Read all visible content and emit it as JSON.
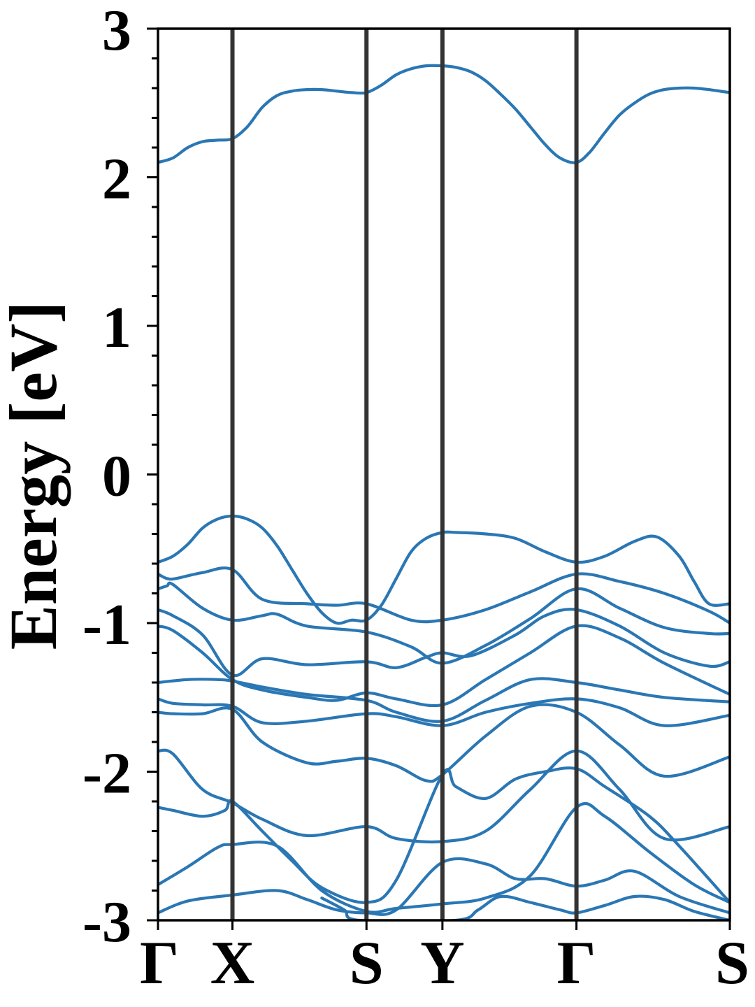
{
  "chart_data": {
    "type": "line",
    "title": "",
    "xlabel": "",
    "ylabel": "Energy [eV]",
    "ylim": [
      -3,
      3
    ],
    "yticks": [
      "-3",
      "-2",
      "-1",
      "0",
      "1",
      "2",
      "3"
    ],
    "y_minor_tick_step": 0.2,
    "xlim": [
      0,
      3.84
    ],
    "kpoints": [
      {
        "label": "Γ",
        "x": 0
      },
      {
        "label": "X",
        "x": 0.5
      },
      {
        "label": "S",
        "x": 1.4
      },
      {
        "label": "Y",
        "x": 1.91
      },
      {
        "label": "Γ",
        "x": 2.81
      },
      {
        "label": "S",
        "x": 3.84
      }
    ],
    "grid": false,
    "legend": "none",
    "line_color": "#2a77b4",
    "kline_color": "#333333",
    "series": [
      {
        "x": [
          0,
          0.1,
          0.2,
          0.3,
          0.4,
          0.5,
          0.6,
          0.7,
          0.8,
          0.9,
          1.0,
          1.1,
          1.2,
          1.3,
          1.4,
          1.5,
          1.6,
          1.7,
          1.8,
          1.91,
          2.0,
          2.1,
          2.2,
          2.3,
          2.4,
          2.5,
          2.6,
          2.7,
          2.81,
          2.9,
          3.0,
          3.1,
          3.2,
          3.3,
          3.4,
          3.5,
          3.6,
          3.7,
          3.84
        ],
        "values": [
          2.1,
          2.13,
          2.2,
          2.24,
          2.25,
          2.26,
          2.34,
          2.47,
          2.55,
          2.58,
          2.59,
          2.59,
          2.58,
          2.57,
          2.57,
          2.62,
          2.69,
          2.73,
          2.75,
          2.75,
          2.74,
          2.71,
          2.65,
          2.56,
          2.46,
          2.34,
          2.22,
          2.13,
          2.1,
          2.17,
          2.3,
          2.42,
          2.5,
          2.56,
          2.59,
          2.6,
          2.6,
          2.59,
          2.57
        ]
      },
      {
        "x": [
          0,
          0.1,
          0.2,
          0.3,
          0.4,
          0.5,
          0.6,
          0.7,
          0.8,
          0.9,
          1.0,
          1.1,
          1.2,
          1.3,
          1.4,
          1.5,
          1.6,
          1.7,
          1.8,
          1.91,
          2.0,
          2.2,
          2.4,
          2.6,
          2.81,
          3.0,
          3.2,
          3.35,
          3.5,
          3.6,
          3.7,
          3.84
        ],
        "values": [
          -0.59,
          -0.55,
          -0.47,
          -0.36,
          -0.3,
          -0.28,
          -0.3,
          -0.36,
          -0.48,
          -0.64,
          -0.8,
          -0.93,
          -1.0,
          -0.98,
          -0.98,
          -0.88,
          -0.7,
          -0.52,
          -0.43,
          -0.39,
          -0.39,
          -0.4,
          -0.43,
          -0.52,
          -0.59,
          -0.55,
          -0.45,
          -0.42,
          -0.55,
          -0.72,
          -0.87,
          -0.87
        ]
      },
      {
        "x": [
          0,
          0.06,
          0.12,
          0.3,
          0.5,
          0.7,
          1.0,
          1.2,
          1.4,
          1.7,
          1.91,
          2.2,
          2.5,
          2.81,
          3.1,
          3.4,
          3.7,
          3.84
        ],
        "values": [
          -0.67,
          -0.7,
          -0.7,
          -0.66,
          -0.64,
          -0.84,
          -0.87,
          -0.88,
          -0.87,
          -0.98,
          -0.98,
          -0.91,
          -0.79,
          -0.67,
          -0.72,
          -0.8,
          -0.92,
          -1.0
        ]
      },
      {
        "x": [
          0,
          0.06,
          0.1,
          0.3,
          0.5,
          0.7,
          0.8,
          1.0,
          1.4,
          1.7,
          1.91,
          2.2,
          2.5,
          2.81,
          3.1,
          3.4,
          3.7,
          3.84
        ],
        "values": [
          -0.77,
          -0.75,
          -0.74,
          -0.9,
          -0.98,
          -0.95,
          -0.94,
          -1.02,
          -1.06,
          -1.16,
          -1.27,
          -1.15,
          -0.97,
          -0.77,
          -0.9,
          -1.03,
          -1.07,
          -1.07
        ]
      },
      {
        "x": [
          0,
          0.1,
          0.3,
          0.5,
          0.7,
          1.0,
          1.4,
          1.6,
          1.8,
          1.91,
          2.1,
          2.4,
          2.6,
          2.81,
          3.1,
          3.4,
          3.7,
          3.84
        ],
        "values": [
          -0.91,
          -0.95,
          -1.08,
          -1.35,
          -1.24,
          -1.28,
          -1.26,
          -1.3,
          -1.23,
          -1.2,
          -1.22,
          -1.08,
          -0.95,
          -0.91,
          -1.02,
          -1.2,
          -1.29,
          -1.26
        ]
      },
      {
        "x": [
          0,
          0.1,
          0.3,
          0.5,
          0.7,
          1.0,
          1.2,
          1.4,
          1.6,
          1.91,
          2.2,
          2.5,
          2.81,
          3.1,
          3.4,
          3.84
        ],
        "values": [
          -1.02,
          -1.05,
          -1.2,
          -1.38,
          -1.45,
          -1.5,
          -1.52,
          -1.47,
          -1.51,
          -1.55,
          -1.38,
          -1.2,
          -1.02,
          -1.1,
          -1.27,
          -1.48
        ]
      },
      {
        "x": [
          0,
          0.2,
          0.4,
          0.5,
          0.7,
          1.0,
          1.4,
          1.6,
          1.91,
          2.2,
          2.5,
          2.81,
          3.1,
          3.4,
          3.84
        ],
        "values": [
          -1.4,
          -1.38,
          -1.38,
          -1.39,
          -1.43,
          -1.48,
          -1.52,
          -1.6,
          -1.66,
          -1.52,
          -1.38,
          -1.4,
          -1.45,
          -1.5,
          -1.53
        ]
      },
      {
        "x": [
          0,
          0.1,
          0.3,
          0.5,
          0.7,
          1.0,
          1.4,
          1.6,
          1.91,
          2.2,
          2.5,
          2.81,
          3.1,
          3.4,
          3.84
        ],
        "values": [
          -1.51,
          -1.54,
          -1.55,
          -1.56,
          -1.67,
          -1.66,
          -1.61,
          -1.63,
          -1.69,
          -1.6,
          -1.54,
          -1.51,
          -1.57,
          -1.69,
          -1.62
        ]
      },
      {
        "x": [
          0,
          0.1,
          0.3,
          0.5,
          0.7,
          1.0,
          1.2,
          1.4,
          1.6,
          1.8,
          1.91,
          2.2,
          2.5,
          2.81,
          3.1,
          3.4,
          3.84
        ],
        "values": [
          -1.6,
          -1.61,
          -1.61,
          -1.58,
          -1.8,
          -1.94,
          -1.93,
          -1.91,
          -1.96,
          -2.06,
          -2.02,
          -1.76,
          -1.56,
          -1.6,
          -1.82,
          -2.03,
          -1.9
        ]
      },
      {
        "x": [
          0,
          0.1,
          0.3,
          0.5,
          0.7,
          1.0,
          1.4,
          1.6,
          1.91,
          2.2,
          2.5,
          2.81,
          3.1,
          3.4,
          3.84
        ],
        "values": [
          -1.86,
          -1.88,
          -2.12,
          -2.21,
          -2.32,
          -2.43,
          -2.37,
          -2.45,
          -2.47,
          -2.4,
          -2.12,
          -1.86,
          -2.12,
          -2.45,
          -2.37
        ]
      },
      {
        "x": [
          0,
          0.1,
          0.3,
          0.45,
          0.5,
          0.7,
          0.9,
          1.1,
          1.4,
          1.6,
          1.91,
          2.0,
          2.2,
          2.4,
          2.6,
          2.81,
          3.0,
          3.3,
          3.5,
          3.84
        ],
        "values": [
          -2.24,
          -2.26,
          -2.3,
          -2.26,
          -2.2,
          -2.4,
          -2.6,
          -2.78,
          -2.88,
          -2.73,
          -2.02,
          -2.1,
          -2.18,
          -2.05,
          -2.0,
          -1.98,
          -2.1,
          -2.3,
          -2.5,
          -2.88
        ]
      },
      {
        "x": [
          0,
          0.2,
          0.4,
          0.5,
          0.8,
          1.1,
          1.4,
          1.6,
          1.91,
          2.2,
          2.5,
          2.81,
          3.0,
          3.3,
          3.6,
          3.84
        ],
        "values": [
          -2.76,
          -2.64,
          -2.51,
          -2.49,
          -2.5,
          -2.8,
          -2.94,
          -2.92,
          -2.89,
          -2.85,
          -2.7,
          -2.24,
          -2.3,
          -2.54,
          -2.76,
          -2.88
        ]
      },
      {
        "x": [
          0,
          0.2,
          0.5,
          0.8,
          1.0,
          1.2,
          1.4,
          1.6,
          1.91,
          2.2,
          2.4,
          2.6,
          2.81,
          3.0,
          3.2,
          3.5,
          3.84
        ],
        "values": [
          -2.95,
          -2.87,
          -2.83,
          -2.8,
          -2.86,
          -2.93,
          -2.95,
          -2.93,
          -2.61,
          -2.62,
          -2.72,
          -2.72,
          -2.77,
          -2.73,
          -2.67,
          -2.84,
          -2.95
        ]
      },
      {
        "x": [
          1.1,
          1.25,
          1.35,
          2.0,
          2.15,
          2.3,
          2.5,
          2.7,
          2.81,
          3.0,
          3.2,
          3.4,
          3.6,
          3.84
        ],
        "values": [
          -2.85,
          -2.93,
          -3.0,
          -3.0,
          -2.93,
          -2.84,
          -2.88,
          -2.93,
          -2.95,
          -2.9,
          -2.84,
          -2.86,
          -2.94,
          -3.0
        ]
      }
    ]
  }
}
